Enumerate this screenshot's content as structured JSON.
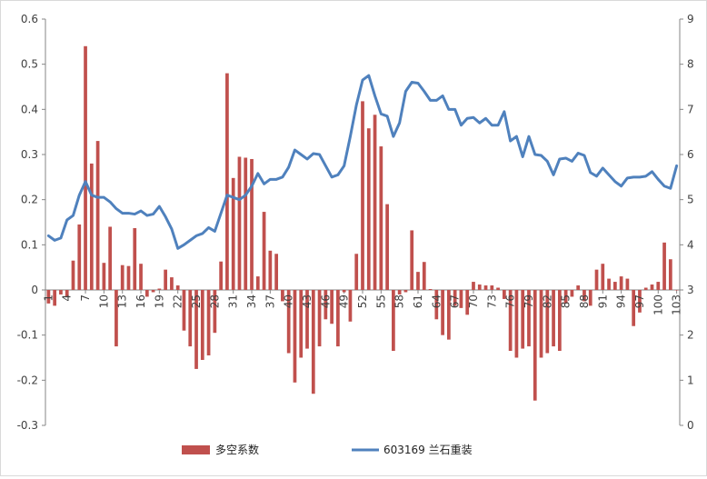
{
  "chart_data": {
    "type": "bar+line",
    "title": "",
    "xlabel": "",
    "y_left": {
      "min": -0.3,
      "max": 0.6,
      "ticks": [
        "-0.3",
        "-0.2",
        "-0.1",
        "0",
        "0.1",
        "0.2",
        "0.3",
        "0.4",
        "0.5",
        "0.6"
      ]
    },
    "y_right": {
      "min": 0,
      "max": 9,
      "ticks": [
        "0",
        "1",
        "2",
        "3",
        "4",
        "5",
        "6",
        "7",
        "8",
        "9"
      ]
    },
    "x_tick_labels": [
      "1",
      "4",
      "7",
      "10",
      "13",
      "16",
      "19",
      "22",
      "25",
      "28",
      "31",
      "34",
      "37",
      "40",
      "43",
      "46",
      "49",
      "52",
      "55",
      "58",
      "61",
      "64",
      "67",
      "70",
      "73",
      "76",
      "79",
      "82",
      "85",
      "88",
      "91",
      "94",
      "97",
      "100",
      "103"
    ],
    "legend_position": "bottom",
    "colors": {
      "bars": "#c0504d",
      "line": "#4f81bd",
      "axis": "#868686"
    },
    "series": [
      {
        "name": "多空系数",
        "type": "bar",
        "axis": "left",
        "values": [
          -0.03,
          -0.035,
          -0.01,
          -0.015,
          0.065,
          0.145,
          0.54,
          0.28,
          0.33,
          0.06,
          0.14,
          -0.125,
          0.055,
          0.053,
          0.137,
          0.058,
          -0.015,
          -0.005,
          0.003,
          0.045,
          0.028,
          0.01,
          -0.09,
          -0.125,
          -0.175,
          -0.155,
          -0.145,
          -0.095,
          0.063,
          0.48,
          0.248,
          0.295,
          0.293,
          0.29,
          0.03,
          0.173,
          0.087,
          0.08,
          -0.025,
          -0.14,
          -0.205,
          -0.15,
          -0.13,
          -0.23,
          -0.125,
          -0.065,
          -0.075,
          -0.125,
          -0.005,
          -0.07,
          0.08,
          0.418,
          0.358,
          0.388,
          0.318,
          0.19,
          -0.135,
          -0.01,
          -0.005,
          0.132,
          0.04,
          0.062,
          0.002,
          -0.065,
          -0.1,
          -0.11,
          -0.035,
          -0.04,
          -0.055,
          0.018,
          0.012,
          0.01,
          0.01,
          0.005,
          -0.02,
          -0.135,
          -0.15,
          -0.13,
          -0.125,
          -0.245,
          -0.15,
          -0.14,
          -0.125,
          -0.135,
          -0.03,
          -0.015,
          0.01,
          -0.025,
          -0.035,
          0.045,
          0.058,
          0.025,
          0.018,
          0.03,
          0.025,
          -0.08,
          -0.05,
          0.005,
          0.012,
          0.018,
          0.105,
          0.068,
          0.0
        ]
      },
      {
        "name": "603169 兰石重装",
        "type": "line",
        "axis": "right",
        "values": [
          4.2,
          4.1,
          4.15,
          4.55,
          4.65,
          5.1,
          5.4,
          5.1,
          5.05,
          5.05,
          4.95,
          4.8,
          4.7,
          4.7,
          4.68,
          4.75,
          4.65,
          4.68,
          4.85,
          4.62,
          4.35,
          3.92,
          4.0,
          4.1,
          4.2,
          4.25,
          4.38,
          4.3,
          4.7,
          5.1,
          5.05,
          5.0,
          5.1,
          5.3,
          5.58,
          5.35,
          5.45,
          5.45,
          5.5,
          5.72,
          6.1,
          6.0,
          5.9,
          6.02,
          6.0,
          5.75,
          5.5,
          5.55,
          5.75,
          6.4,
          7.1,
          7.65,
          7.75,
          7.3,
          6.9,
          6.85,
          6.4,
          6.7,
          7.4,
          7.6,
          7.58,
          7.4,
          7.2,
          7.2,
          7.3,
          7.0,
          7.0,
          6.65,
          6.8,
          6.82,
          6.7,
          6.8,
          6.65,
          6.65,
          6.95,
          6.3,
          6.4,
          5.95,
          6.4,
          6.0,
          5.98,
          5.85,
          5.55,
          5.9,
          5.92,
          5.85,
          6.03,
          5.98,
          5.6,
          5.52,
          5.7,
          5.55,
          5.4,
          5.3,
          5.48,
          5.5,
          5.5,
          5.52,
          5.62,
          5.45,
          5.3,
          5.25,
          5.75
        ]
      }
    ]
  }
}
